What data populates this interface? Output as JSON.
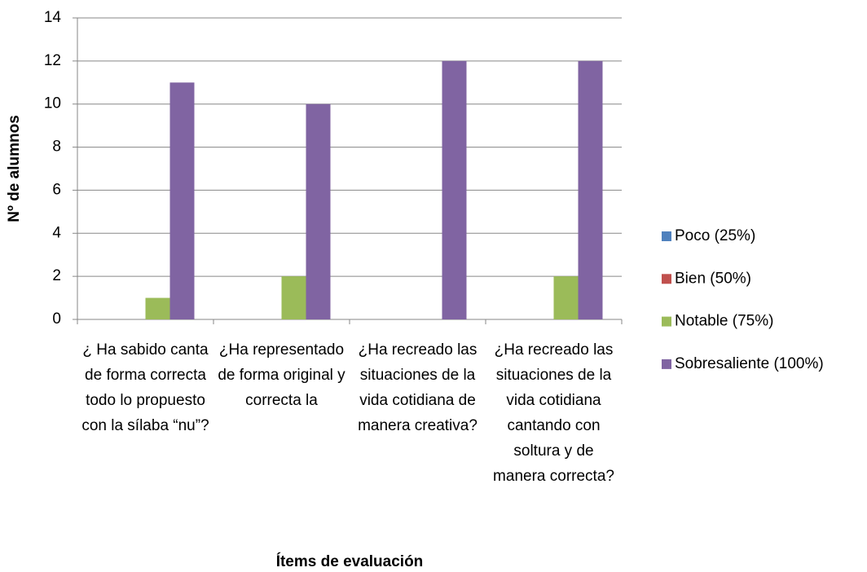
{
  "chart_data": {
    "type": "bar",
    "y_label": "Nº de alumnos",
    "x_label": "Ítems de evaluación",
    "categories": [
      "¿ Ha sabido canta de forma correcta todo lo propuesto con la sílaba “nu”?",
      "¿Ha representado de forma original y correcta la",
      "¿Ha recreado las situaciones de la vida cotidiana de manera creativa?",
      "¿Ha recreado las situaciones de la vida cotidiana cantando con soltura y de manera correcta?"
    ],
    "series": [
      {
        "name": "Poco (25%)",
        "color": "#4f81bd",
        "values": [
          0,
          0,
          0,
          0
        ]
      },
      {
        "name": "Bien (50%)",
        "color": "#c0504d",
        "values": [
          0,
          0,
          0,
          0
        ]
      },
      {
        "name": "Notable (75%)",
        "color": "#9bbb59",
        "values": [
          1,
          2,
          0,
          2
        ]
      },
      {
        "name": "Sobresaliente (100%)",
        "color": "#8064a2",
        "values": [
          11,
          10,
          12,
          12
        ]
      }
    ],
    "ylim": [
      0,
      14
    ],
    "yticks": [
      0,
      2,
      4,
      6,
      8,
      10,
      12,
      14
    ],
    "grid": true,
    "legend": "right"
  }
}
